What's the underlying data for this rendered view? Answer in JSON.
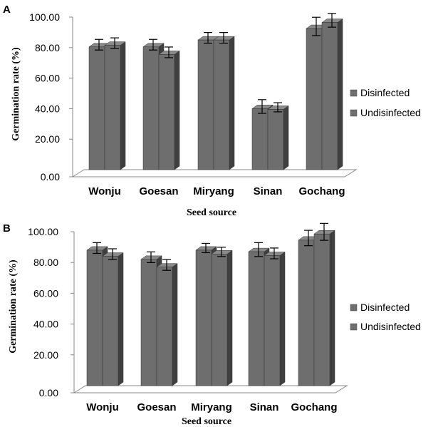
{
  "chart_data": [
    {
      "type": "bar",
      "panel_label": "A",
      "categories": [
        "Wonju",
        "Goesan",
        "Miryang",
        "Sinan",
        "Gochang"
      ],
      "series": [
        {
          "name": "Disinfected",
          "values": [
            80.5,
            80.5,
            85.0,
            40.0,
            92.5
          ],
          "errors": [
            3.5,
            3.5,
            3.5,
            4.5,
            6.0
          ]
        },
        {
          "name": "Undisinfected",
          "values": [
            81.5,
            75.5,
            85.0,
            39.5,
            96.5
          ],
          "errors": [
            3.5,
            3.5,
            3.5,
            3.0,
            4.5
          ]
        }
      ],
      "xlabel": "Seed source",
      "ylabel": "Germination rate (%)",
      "ylim": [
        0,
        100
      ],
      "yticks": [
        "0.00",
        "20.00",
        "40.00",
        "60.00",
        "80.00",
        "100.00"
      ],
      "legend_position": "right",
      "colors": {
        "front": "#6e6e6e",
        "side": "#3f3f3f",
        "top": "#8a8a8a"
      }
    },
    {
      "type": "bar",
      "panel_label": "B",
      "categories": [
        "Wonju",
        "Goesan",
        "Miryang",
        "Sinan",
        "Gochang"
      ],
      "series": [
        {
          "name": "Disinfected",
          "values": [
            88.0,
            82.0,
            88.0,
            87.0,
            94.5
          ],
          "errors": [
            3.5,
            3.5,
            3.0,
            4.5,
            5.0
          ]
        },
        {
          "name": "Undisinfected",
          "values": [
            84.0,
            77.0,
            85.5,
            84.5,
            98.5
          ],
          "errors": [
            3.5,
            3.5,
            3.0,
            3.5,
            5.5
          ]
        }
      ],
      "xlabel": "Seed source",
      "ylabel": "Germination rate (%)",
      "ylim": [
        0,
        100
      ],
      "yticks": [
        "0.00",
        "20.00",
        "40.00",
        "60.00",
        "80.00",
        "100.00"
      ],
      "legend_position": "right",
      "colors": {
        "front": "#6e6e6e",
        "side": "#3f3f3f",
        "top": "#8a8a8a"
      }
    }
  ]
}
